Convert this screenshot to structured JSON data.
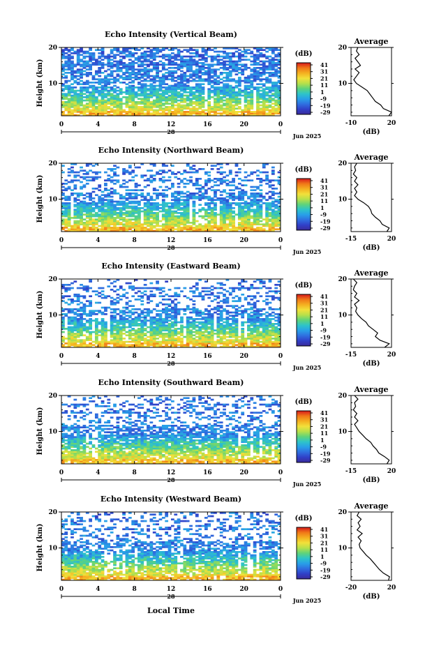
{
  "figure": {
    "xlabel": "Local Time",
    "date_label": "Jun 2025",
    "day_label": "28",
    "colorbar_unit": "(dB)",
    "colorbar_ticks": [
      "41",
      "31",
      "21",
      "11",
      "1",
      "-9",
      "-19",
      "-29"
    ],
    "colorbar_colors": [
      "#d7191c",
      "#f07818",
      "#f4b020",
      "#f2e03a",
      "#b7e04a",
      "#5fd37a",
      "#2ec4c8",
      "#28a0e8",
      "#2f6fe0",
      "#3040c8",
      "#3a2a9a"
    ],
    "avg_title": "Average",
    "avg_xlabel": "(dB)"
  },
  "chart_data": [
    {
      "type": "heatmap",
      "title": "Echo Intensity (Vertical Beam)",
      "ylabel": "Height (km)",
      "x_ticks": [
        "0",
        "4",
        "8",
        "12",
        "16",
        "20",
        "0"
      ],
      "y_ticks": [
        "20",
        "10"
      ],
      "xlim": [
        0,
        24
      ],
      "ylim": [
        1,
        20
      ],
      "clim": [
        -29,
        41
      ],
      "average_profile": {
        "x_ticks": [
          "-10",
          "20"
        ],
        "xlim": [
          -10,
          20
        ],
        "height_km": [
          1,
          2,
          3,
          4,
          5,
          6,
          7,
          8,
          9,
          10,
          11,
          12,
          13,
          14,
          15,
          16,
          17,
          18,
          19,
          20
        ],
        "values_db": [
          18,
          20,
          14,
          12,
          8,
          6,
          4,
          2,
          -2,
          -6,
          -8,
          -6,
          -4,
          -7,
          -3,
          -5,
          -7,
          -4,
          -6,
          -5
        ]
      }
    },
    {
      "type": "heatmap",
      "title": "Echo Intensity (Northward Beam)",
      "ylabel": "Height (km)",
      "x_ticks": [
        "0",
        "4",
        "8",
        "12",
        "16",
        "20",
        "0"
      ],
      "y_ticks": [
        "20",
        "10"
      ],
      "xlim": [
        0,
        24
      ],
      "ylim": [
        1,
        20
      ],
      "clim": [
        -29,
        41
      ],
      "average_profile": {
        "x_ticks": [
          "-15",
          "20"
        ],
        "xlim": [
          -15,
          20
        ],
        "height_km": [
          1,
          2,
          3,
          4,
          5,
          6,
          7,
          8,
          9,
          10,
          11,
          12,
          13,
          14,
          15,
          16,
          17,
          18,
          19,
          20
        ],
        "values_db": [
          16,
          18,
          12,
          10,
          6,
          3,
          2,
          0,
          -4,
          -9,
          -12,
          -10,
          -12,
          -9,
          -12,
          -10,
          -13,
          -11,
          -12,
          -10
        ]
      }
    },
    {
      "type": "heatmap",
      "title": "Echo Intensity (Eastward Beam)",
      "ylabel": "Height (km)",
      "x_ticks": [
        "0",
        "4",
        "8",
        "12",
        "16",
        "20",
        "0"
      ],
      "y_ticks": [
        "20",
        "10"
      ],
      "xlim": [
        0,
        24
      ],
      "ylim": [
        1,
        20
      ],
      "clim": [
        -29,
        41
      ],
      "average_profile": {
        "x_ticks": [
          "-15",
          "20"
        ],
        "xlim": [
          -15,
          20
        ],
        "height_km": [
          1,
          2,
          3,
          4,
          5,
          6,
          7,
          8,
          9,
          10,
          11,
          12,
          13,
          14,
          15,
          16,
          17,
          18,
          19,
          20
        ],
        "values_db": [
          14,
          18,
          10,
          6,
          8,
          4,
          0,
          -2,
          -6,
          -9,
          -11,
          -10,
          -12,
          -8,
          -12,
          -10,
          -13,
          -12,
          -10,
          -13
        ]
      }
    },
    {
      "type": "heatmap",
      "title": "Echo Intensity (Southward Beam)",
      "ylabel": "Height (km)",
      "x_ticks": [
        "0",
        "4",
        "8",
        "12",
        "16",
        "20",
        "0"
      ],
      "y_ticks": [
        "20",
        "10"
      ],
      "xlim": [
        0,
        24
      ],
      "ylim": [
        1,
        20
      ],
      "clim": [
        -29,
        41
      ],
      "average_profile": {
        "x_ticks": [
          "-15",
          "20"
        ],
        "xlim": [
          -15,
          20
        ],
        "height_km": [
          1,
          2,
          3,
          4,
          5,
          6,
          7,
          8,
          9,
          10,
          11,
          12,
          13,
          14,
          15,
          16,
          17,
          18,
          19,
          20
        ],
        "values_db": [
          16,
          18,
          14,
          9,
          7,
          4,
          2,
          -2,
          -5,
          -8,
          -10,
          -12,
          -9,
          -12,
          -10,
          -13,
          -11,
          -12,
          -9,
          -12
        ]
      }
    },
    {
      "type": "heatmap",
      "title": "Echo Intensity (Westward Beam)",
      "ylabel": "Height (km)",
      "x_ticks": [
        "0",
        "4",
        "8",
        "12",
        "16",
        "20",
        "0"
      ],
      "y_ticks": [
        "20",
        "10"
      ],
      "xlim": [
        0,
        24
      ],
      "ylim": [
        1,
        20
      ],
      "clim": [
        -29,
        41
      ],
      "average_profile": {
        "x_ticks": [
          "-20",
          "20"
        ],
        "xlim": [
          -20,
          20
        ],
        "height_km": [
          1,
          2,
          3,
          4,
          5,
          6,
          7,
          8,
          9,
          10,
          11,
          12,
          13,
          14,
          15,
          16,
          17,
          18,
          19,
          20
        ],
        "values_db": [
          17,
          18,
          12,
          8,
          5,
          2,
          -1,
          -5,
          -8,
          -11,
          -12,
          -10,
          -13,
          -9,
          -14,
          -11,
          -13,
          -10,
          -14,
          -12
        ]
      }
    }
  ]
}
